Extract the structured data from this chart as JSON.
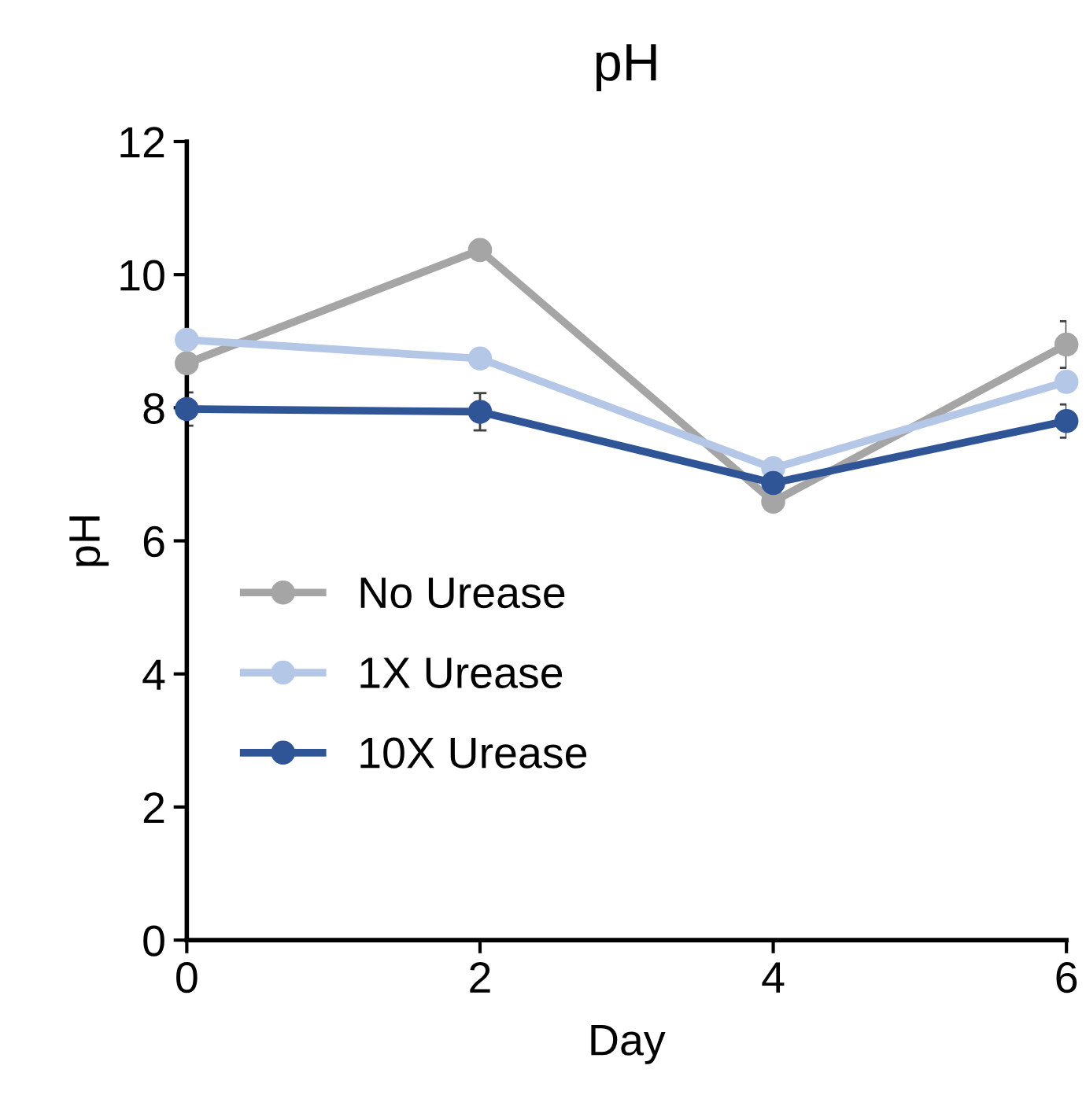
{
  "chart_data": {
    "type": "line",
    "title": "pH",
    "xlabel": "Day",
    "ylabel": "pH",
    "x": [
      0,
      2,
      4,
      6
    ],
    "series": [
      {
        "name": "No Urease",
        "color": "#a5a5a5",
        "values": [
          8.67,
          10.37,
          6.59,
          8.95
        ],
        "errors": [
          null,
          null,
          null,
          0.35
        ]
      },
      {
        "name": "1X Urease",
        "color": "#b4c7e7",
        "values": [
          9.02,
          8.74,
          7.09,
          8.39
        ],
        "errors": [
          null,
          null,
          null,
          null
        ]
      },
      {
        "name": "10X Urease",
        "color": "#2f5597",
        "values": [
          7.98,
          7.94,
          6.87,
          7.8
        ],
        "errors": [
          0.25,
          0.28,
          null,
          0.25
        ]
      }
    ],
    "xlim": [
      0,
      6
    ],
    "xticks": [
      0,
      2,
      4,
      6
    ],
    "ylim": [
      0,
      12
    ],
    "yticks": [
      0,
      2,
      4,
      6,
      8,
      10,
      12
    ],
    "grid": false,
    "legend": "left",
    "marker": "circle",
    "line_style": "solid"
  }
}
